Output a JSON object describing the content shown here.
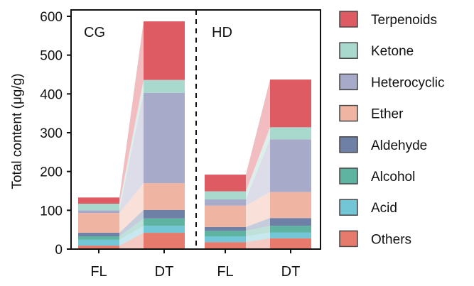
{
  "chart_data": {
    "type": "bar",
    "stacked": true,
    "ylabel": "Total content (μg/g)",
    "xlabel": "",
    "ylim": [
      0,
      600
    ],
    "yticks": [
      "0",
      "100",
      "200",
      "300",
      "400",
      "500",
      "600"
    ],
    "ytick_values": [
      0,
      100,
      200,
      300,
      400,
      500,
      600
    ],
    "grid": false,
    "legend_position": "right",
    "groups": [
      {
        "label": "CG",
        "categories": [
          "FL",
          "DT"
        ]
      },
      {
        "label": "HD",
        "categories": [
          "FL",
          "DT"
        ]
      }
    ],
    "categories": [
      "FL",
      "DT",
      "FL",
      "DT"
    ],
    "series": [
      {
        "name": "Others",
        "color": "#e67a6c",
        "values": [
          9,
          42,
          18,
          28
        ]
      },
      {
        "name": "Acid",
        "color": "#72c6d6",
        "values": [
          15,
          18,
          15,
          15
        ]
      },
      {
        "name": "Alcohol",
        "color": "#5fb3a1",
        "values": [
          9,
          19,
          14,
          17
        ]
      },
      {
        "name": "Aldehyde",
        "color": "#6e80a6",
        "values": [
          9,
          22,
          10,
          20
        ]
      },
      {
        "name": "Ether",
        "color": "#f0b4a2",
        "values": [
          51,
          69,
          55,
          67
        ]
      },
      {
        "name": "Heterocyclic",
        "color": "#a7abc9",
        "values": [
          7,
          233,
          16,
          136
        ]
      },
      {
        "name": "Ketone",
        "color": "#a9d8cd",
        "values": [
          17,
          33,
          21,
          31
        ]
      },
      {
        "name": "Terpenoids",
        "color": "#de5b64",
        "values": [
          16,
          151,
          43,
          123
        ]
      }
    ],
    "legend_order": [
      "Terpenoids",
      "Ketone",
      "Heterocyclic",
      "Ether",
      "Aldehyde",
      "Alcohol",
      "Acid",
      "Others"
    ]
  }
}
